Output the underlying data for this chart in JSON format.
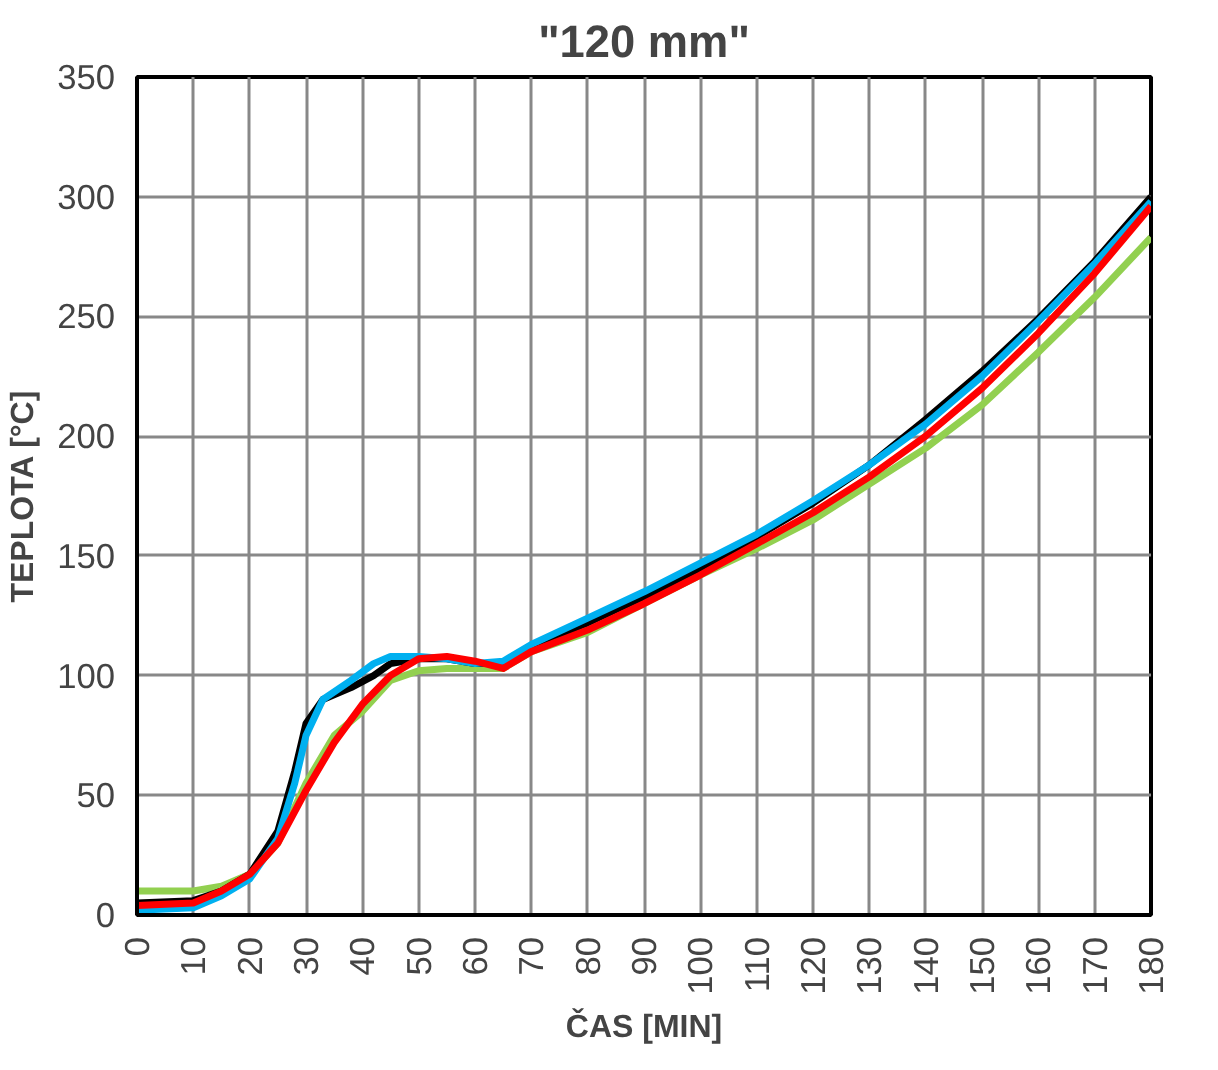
{
  "chart_data": {
    "type": "line",
    "title": "\"120 mm\"",
    "xlabel": "ČAS [MIN]",
    "ylabel": "TEPLOTA [°C]",
    "xlim": [
      0,
      180
    ],
    "xticks": [
      0,
      10,
      20,
      30,
      40,
      50,
      60,
      70,
      80,
      90,
      100,
      110,
      120,
      130,
      140,
      150,
      160,
      170,
      180
    ],
    "ylim": [
      0,
      350
    ],
    "yticks": [
      0,
      50,
      100,
      150,
      200,
      250,
      300,
      350
    ],
    "grid": true,
    "marker": "none",
    "line_style": "solid",
    "x": [
      0,
      10,
      15,
      20,
      25,
      28,
      30,
      33,
      38,
      42,
      45,
      50,
      55,
      60,
      65,
      70,
      80,
      90,
      100,
      110,
      120,
      130,
      140,
      150,
      160,
      170,
      180
    ],
    "series": [
      {
        "color": "#92d050",
        "x": [
          0,
          10,
          15,
          20,
          25,
          30,
          35,
          40,
          45,
          50,
          55,
          60,
          65,
          70,
          80,
          90,
          100,
          110,
          120,
          130,
          140,
          150,
          160,
          170,
          180
        ],
        "values": [
          10,
          10,
          12,
          17,
          30,
          55,
          75,
          85,
          98,
          102,
          103,
          103,
          103,
          110,
          118,
          130,
          142,
          153,
          165,
          180,
          195,
          213,
          235,
          258,
          283
        ]
      },
      {
        "color": "#000000",
        "values": [
          5,
          6,
          10,
          17,
          35,
          60,
          80,
          90,
          95,
          100,
          105,
          107,
          107,
          105,
          105,
          112,
          122,
          133,
          145,
          158,
          172,
          188,
          207,
          227,
          249,
          273,
          300
        ]
      },
      {
        "color": "#00b0f0",
        "values": [
          2,
          3,
          8,
          15,
          32,
          55,
          75,
          90,
          98,
          105,
          108,
          108,
          107,
          105,
          106,
          113,
          124,
          135,
          147,
          159,
          173,
          188,
          205,
          225,
          248,
          272,
          298
        ]
      },
      {
        "color": "#ff0000",
        "x": [
          0,
          10,
          15,
          20,
          25,
          30,
          35,
          40,
          45,
          50,
          55,
          60,
          65,
          70,
          80,
          90,
          100,
          110,
          120,
          130,
          140,
          150,
          160,
          170,
          180
        ],
        "values": [
          4,
          5,
          10,
          17,
          30,
          52,
          72,
          88,
          100,
          107,
          108,
          106,
          103,
          110,
          119,
          130,
          142,
          155,
          168,
          183,
          200,
          220,
          243,
          268,
          296
        ]
      }
    ]
  }
}
